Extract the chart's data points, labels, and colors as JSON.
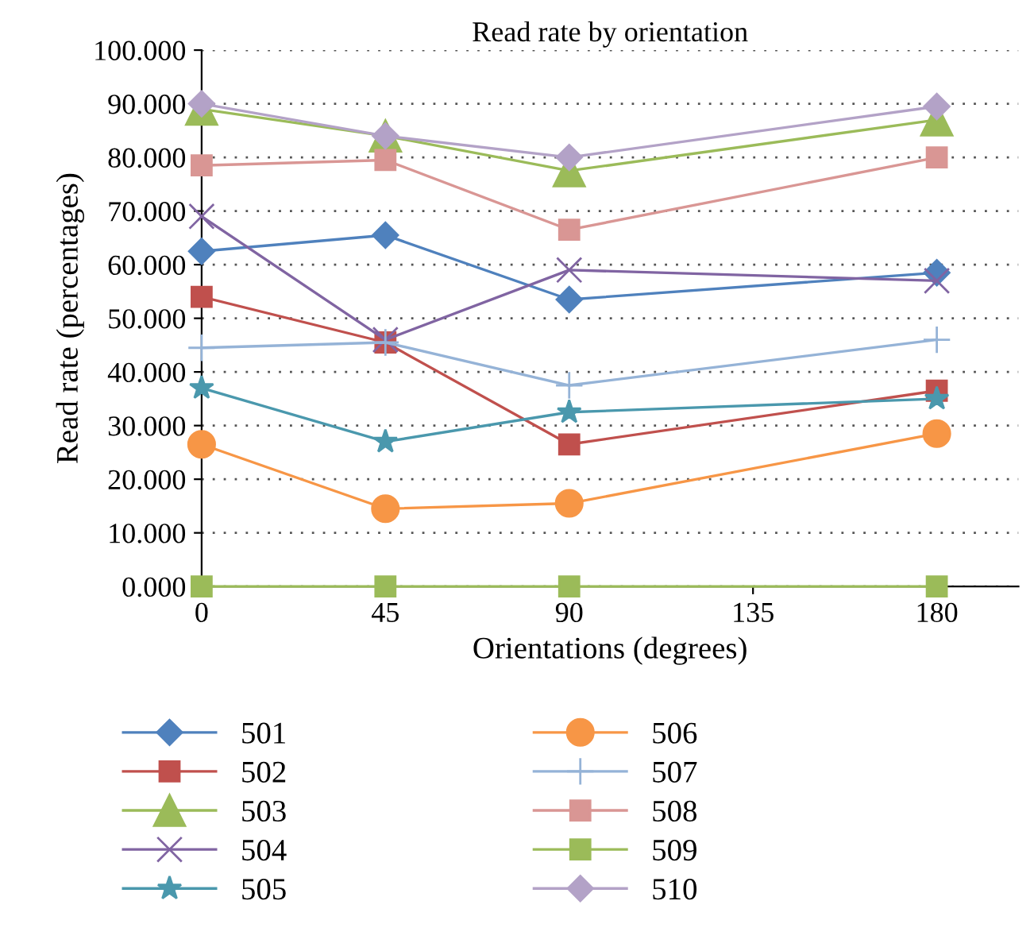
{
  "chart_data": {
    "type": "line",
    "title": "Read rate by orientation",
    "xlabel": "Orientations (degrees)",
    "ylabel": "Read rate (percentages)",
    "x": [
      0,
      45,
      90,
      180
    ],
    "series": [
      {
        "name": "501",
        "color": "#4f81bd",
        "marker": "diamond",
        "values": [
          62.5,
          65.5,
          53.5,
          58.5
        ]
      },
      {
        "name": "502",
        "color": "#c0504d",
        "marker": "square",
        "values": [
          54,
          45.5,
          26.5,
          36.5
        ]
      },
      {
        "name": "503",
        "color": "#9bbb59",
        "marker": "triangle",
        "values": [
          89,
          84,
          77.5,
          87
        ]
      },
      {
        "name": "504",
        "color": "#8064a2",
        "marker": "cross",
        "values": [
          69,
          46,
          59,
          57
        ]
      },
      {
        "name": "505",
        "color": "#4a98ad",
        "marker": "star",
        "values": [
          37,
          27,
          32.5,
          35
        ]
      },
      {
        "name": "506",
        "color": "#f79646",
        "marker": "circle",
        "values": [
          26.5,
          14.5,
          15.5,
          28.5
        ]
      },
      {
        "name": "507",
        "color": "#95b3d7",
        "marker": "plus",
        "values": [
          44.5,
          45.5,
          37.5,
          46
        ]
      },
      {
        "name": "508",
        "color": "#d99694",
        "marker": "square",
        "values": [
          78.5,
          79.5,
          66.5,
          80
        ]
      },
      {
        "name": "509",
        "color": "#9bbb59",
        "marker": "square",
        "values": [
          0,
          0,
          0,
          0
        ]
      },
      {
        "name": "510",
        "color": "#b3a2c7",
        "marker": "diamond",
        "values": [
          90,
          84,
          80,
          89.5
        ]
      }
    ],
    "xlim": [
      0,
      200
    ],
    "xticks": [
      0,
      45,
      90,
      135,
      180
    ],
    "ylim": [
      0,
      100
    ],
    "yticks": [
      {
        "value": 0,
        "label": "0.000"
      },
      {
        "value": 10,
        "label": "10.000"
      },
      {
        "value": 20,
        "label": "20.000"
      },
      {
        "value": 30,
        "label": "30.000"
      },
      {
        "value": 40,
        "label": "40.000"
      },
      {
        "value": 50,
        "label": "50.000"
      },
      {
        "value": 60,
        "label": "60.000"
      },
      {
        "value": 70,
        "label": "70.000"
      },
      {
        "value": 80,
        "label": "80.000"
      },
      {
        "value": 90,
        "label": "90.000"
      },
      {
        "value": 100,
        "label": "100.000"
      }
    ],
    "grid": "y",
    "legend": "bottom"
  }
}
